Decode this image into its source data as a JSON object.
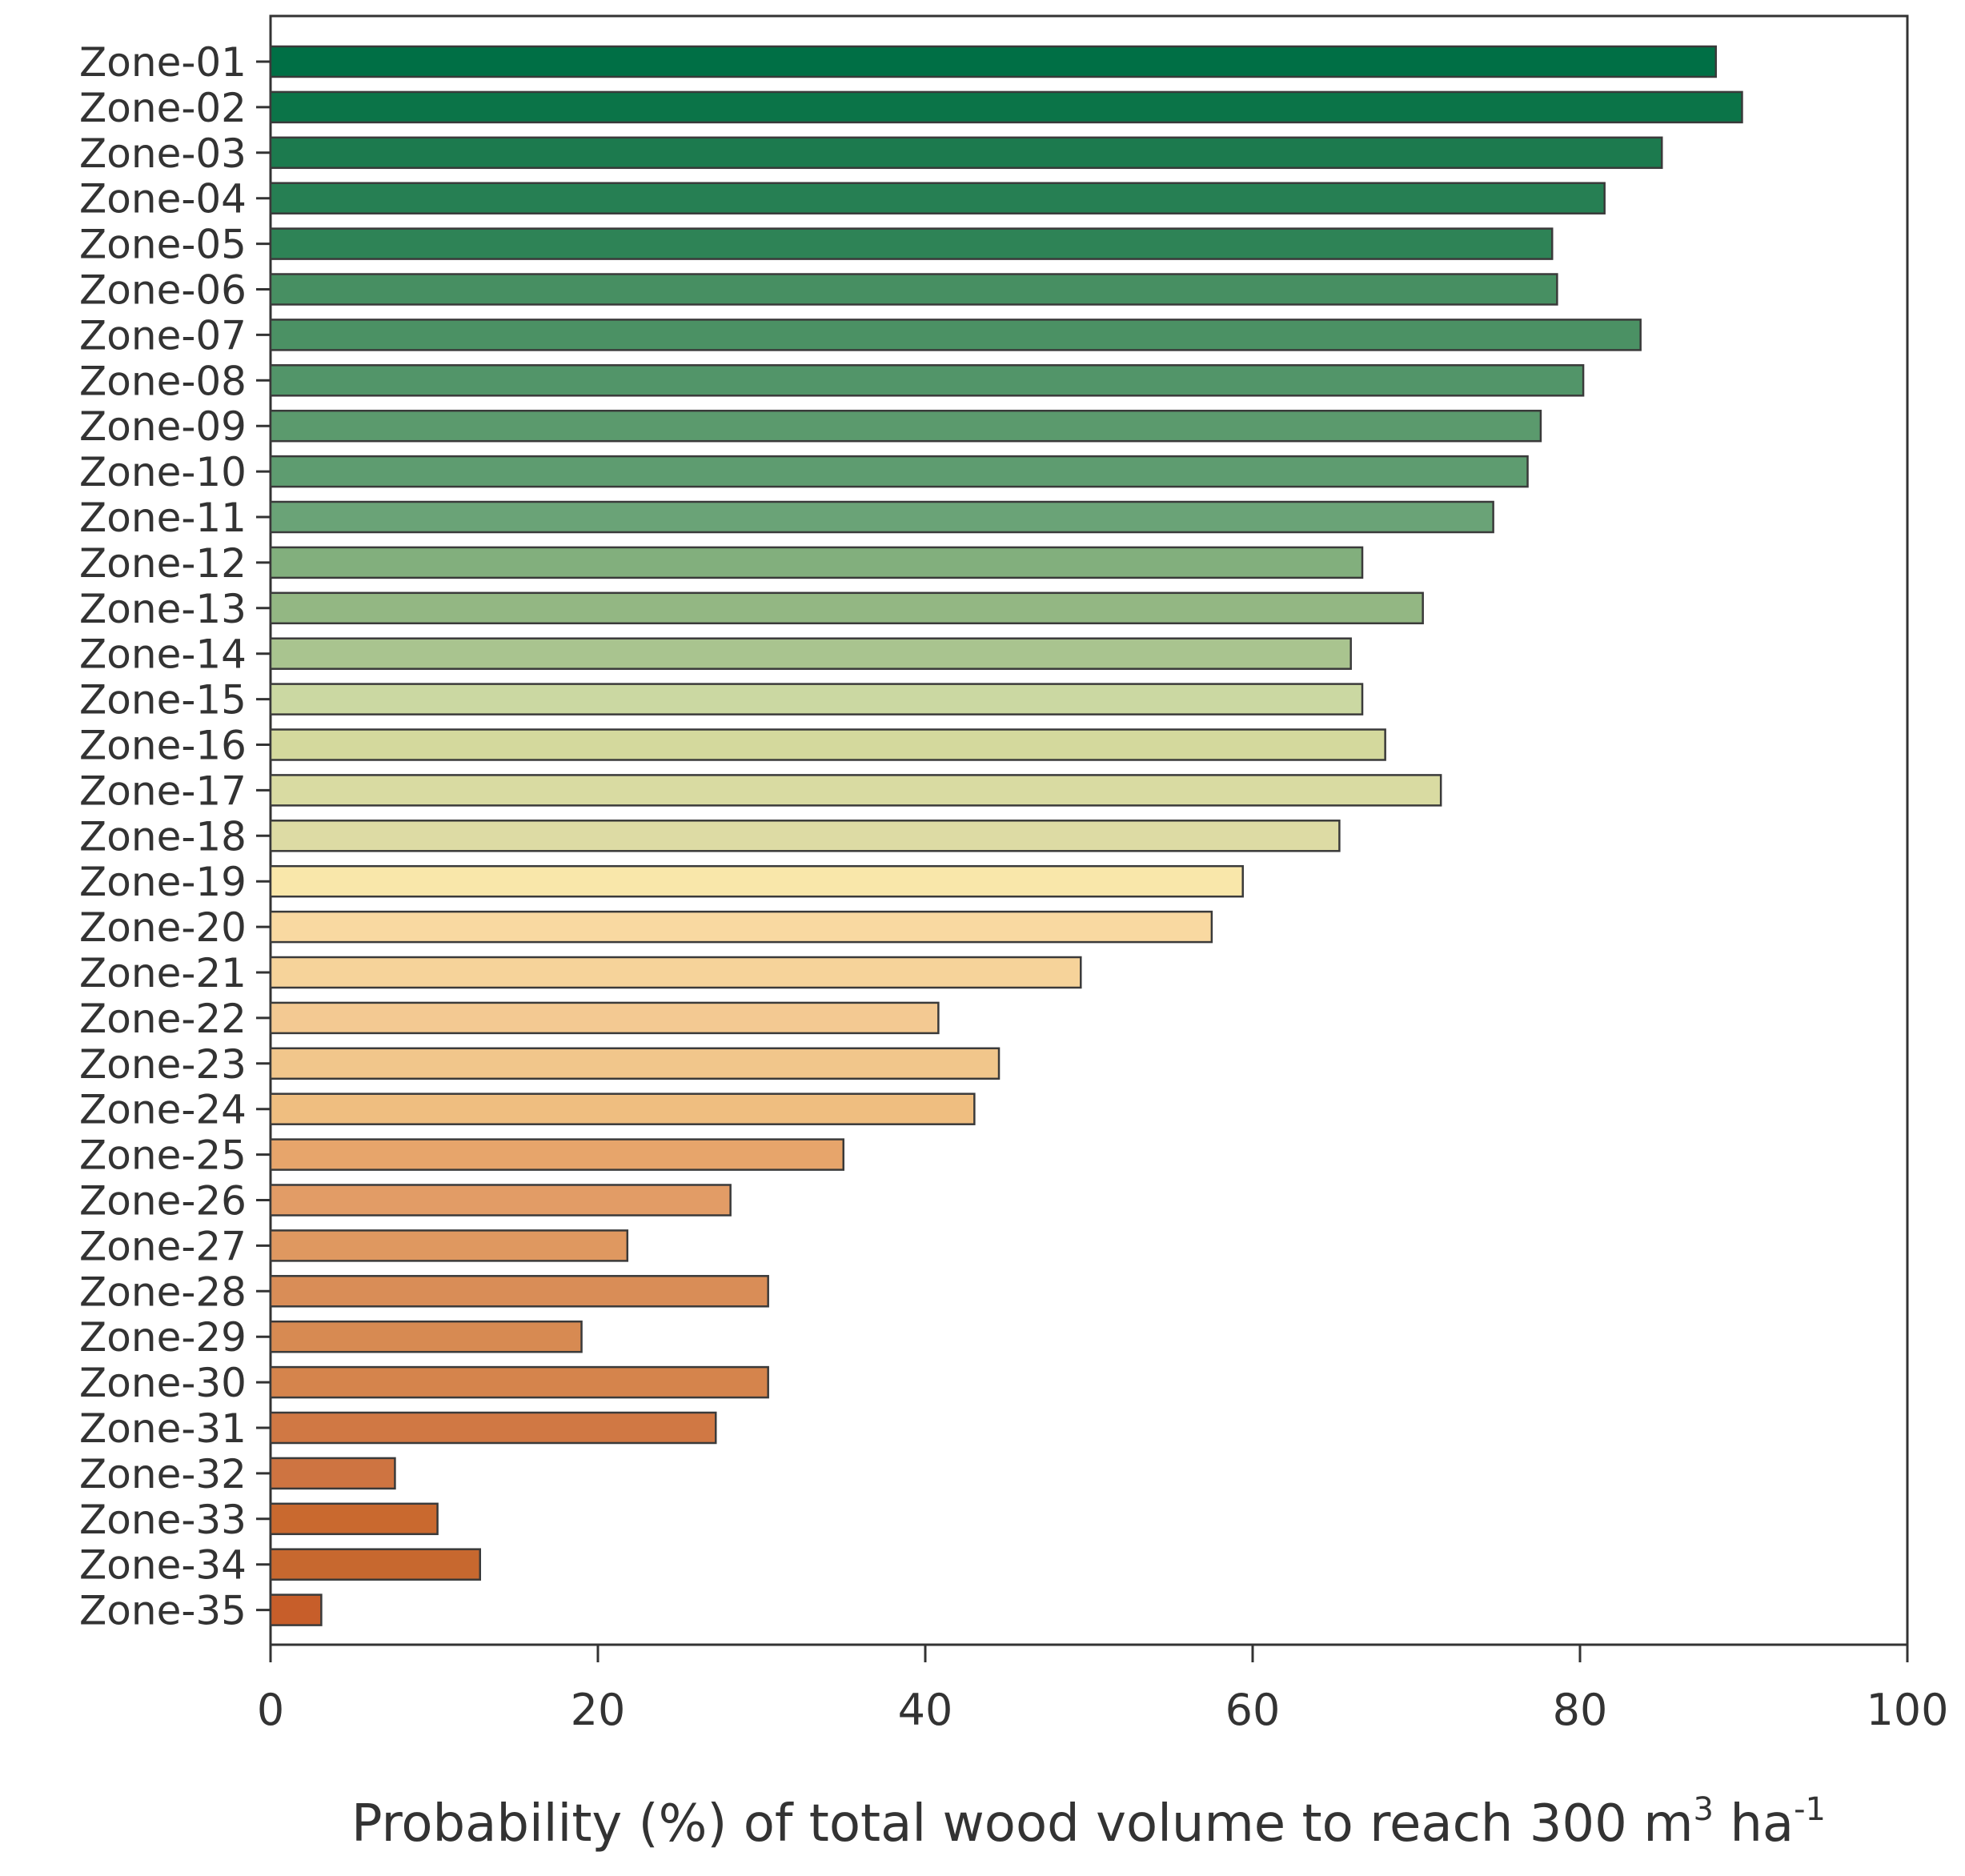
{
  "chart_data": {
    "type": "bar",
    "orientation": "horizontal",
    "title": "",
    "xlabel_main": "Probability (%) of total wood volume to reach 300 m",
    "xlabel_sup1": "3",
    "xlabel_mid": " ha",
    "xlabel_sup2": "-1",
    "ylabel": "",
    "xlim": [
      0,
      100
    ],
    "xticks": [
      "0",
      "20",
      "40",
      "60",
      "80",
      "100"
    ],
    "grid": false,
    "legend": "none",
    "categories": [
      "Zone-01",
      "Zone-02",
      "Zone-03",
      "Zone-04",
      "Zone-05",
      "Zone-06",
      "Zone-07",
      "Zone-08",
      "Zone-09",
      "Zone-10",
      "Zone-11",
      "Zone-12",
      "Zone-13",
      "Zone-14",
      "Zone-15",
      "Zone-16",
      "Zone-17",
      "Zone-18",
      "Zone-19",
      "Zone-20",
      "Zone-21",
      "Zone-22",
      "Zone-23",
      "Zone-24",
      "Zone-25",
      "Zone-26",
      "Zone-27",
      "Zone-28",
      "Zone-29",
      "Zone-30",
      "Zone-31",
      "Zone-32",
      "Zone-33",
      "Zone-34",
      "Zone-35"
    ],
    "values": [
      88.3,
      89.9,
      85.0,
      81.5,
      78.3,
      78.6,
      83.7,
      80.2,
      77.6,
      76.8,
      74.7,
      66.7,
      70.4,
      66.0,
      66.7,
      68.1,
      71.5,
      65.3,
      59.4,
      57.5,
      49.5,
      40.8,
      44.5,
      43.0,
      35.0,
      28.1,
      21.8,
      30.4,
      19.0,
      30.4,
      27.2,
      7.6,
      10.2,
      12.8,
      3.1
    ],
    "colors": [
      "#006f45",
      "#0b7448",
      "#1c7a4e",
      "#267f53",
      "#2e8356",
      "#478f62",
      "#4b9164",
      "#529569",
      "#5b9a6d",
      "#5e9c70",
      "#6aa377",
      "#82af7d",
      "#93b783",
      "#a9c48f",
      "#cbd8a2",
      "#d4d99d",
      "#d9dba2",
      "#dddba4",
      "#f9e7aa",
      "#f9d9a1",
      "#f6d39a",
      "#f3c992",
      "#f1c68b",
      "#efbe80",
      "#e7a56b",
      "#e29c66",
      "#df9860",
      "#d98d57",
      "#d78a52",
      "#d5844c",
      "#d07844",
      "#ce7441",
      "#c9692f",
      "#c7682f",
      "#c75e2a"
    ]
  }
}
